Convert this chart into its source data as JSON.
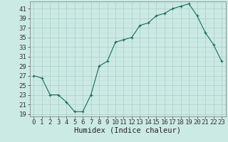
{
  "x": [
    0,
    1,
    2,
    3,
    4,
    5,
    6,
    7,
    8,
    9,
    10,
    11,
    12,
    13,
    14,
    15,
    16,
    17,
    18,
    19,
    20,
    21,
    22,
    23
  ],
  "y": [
    27.0,
    26.5,
    23.0,
    23.0,
    21.5,
    19.5,
    19.5,
    23.0,
    29.0,
    30.0,
    34.0,
    34.5,
    35.0,
    37.5,
    38.0,
    39.5,
    40.0,
    41.0,
    41.5,
    42.0,
    39.5,
    36.0,
    33.5,
    30.0
  ],
  "xlabel": "Humidex (Indice chaleur)",
  "yticks": [
    19,
    21,
    23,
    25,
    27,
    29,
    31,
    33,
    35,
    37,
    39,
    41
  ],
  "xticks": [
    0,
    1,
    2,
    3,
    4,
    5,
    6,
    7,
    8,
    9,
    10,
    11,
    12,
    13,
    14,
    15,
    16,
    17,
    18,
    19,
    20,
    21,
    22,
    23
  ],
  "ylim": [
    18.5,
    42.5
  ],
  "xlim": [
    -0.5,
    23.5
  ],
  "line_color": "#1a6b5a",
  "marker": "+",
  "bg_color": "#cceae4",
  "grid_color_dark": "#aaccc6",
  "grid_color_light": "#bbddd8",
  "tick_fontsize": 6.5,
  "xlabel_fontsize": 7.5
}
